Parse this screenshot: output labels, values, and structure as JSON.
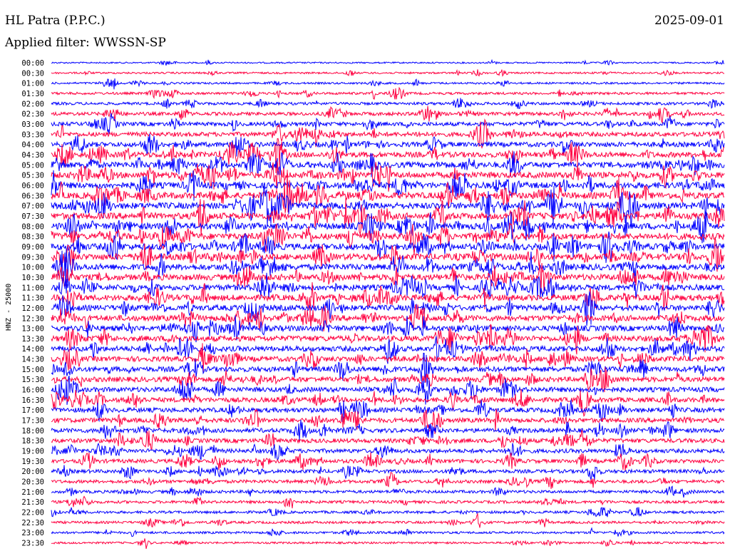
{
  "header": {
    "station": "HL Patra (P.P.C.)",
    "filter": "Applied filter: WWSSN-SP",
    "date": "2025-09-01"
  },
  "colors": {
    "trace_a": "#0000ff",
    "trace_b": "#ff0040",
    "background": "#ffffff"
  },
  "chart_data": {
    "type": "line",
    "title": "HL Patra (P.P.C.)",
    "subtitle": "Applied filter: WWSSN-SP",
    "date": "2025-09-01",
    "ylabel": "HNZ - 25000",
    "xlabel": "",
    "y_tick_labels": [
      "00:00",
      "00:30",
      "01:00",
      "01:30",
      "02:00",
      "02:30",
      "03:00",
      "03:30",
      "04:00",
      "04:30",
      "05:00",
      "05:30",
      "06:00",
      "06:30",
      "07:00",
      "07:30",
      "08:00",
      "08:30",
      "09:00",
      "09:30",
      "10:00",
      "10:30",
      "11:00",
      "11:30",
      "12:00",
      "12:30",
      "13:00",
      "13:30",
      "14:00",
      "14:30",
      "15:00",
      "15:30",
      "16:00",
      "16:30",
      "17:00",
      "17:30",
      "18:00",
      "18:30",
      "19:00",
      "19:30",
      "20:00",
      "20:30",
      "21:00",
      "21:30",
      "22:00",
      "22:30",
      "23:00",
      "23:30"
    ],
    "trace_minutes": 30,
    "series_colors": [
      "#0000ff",
      "#ff0040"
    ],
    "row_activity": [
      0.4,
      0.6,
      0.7,
      1.0,
      1.2,
      1.6,
      1.9,
      2.2,
      2.5,
      2.8,
      3.0,
      3.2,
      3.3,
      3.4,
      3.4,
      3.4,
      3.5,
      3.4,
      3.4,
      3.3,
      3.3,
      3.2,
      3.1,
      3.1,
      3.0,
      3.0,
      2.9,
      2.9,
      2.8,
      2.7,
      2.7,
      2.6,
      2.5,
      2.4,
      2.4,
      2.3,
      2.2,
      2.1,
      2.0,
      1.9,
      1.7,
      1.5,
      1.3,
      1.2,
      1.1,
      1.0,
      0.9,
      0.7
    ],
    "grid": false
  }
}
